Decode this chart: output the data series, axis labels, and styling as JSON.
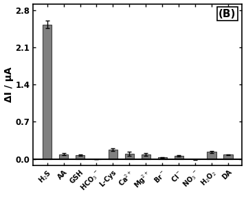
{
  "categories": [
    "H$_2$S",
    "AA",
    "GSH",
    "HCO$_3$$^-$",
    "L-Cys",
    "Ca$^{2+}$",
    "Mg$^{2+}$",
    "Br$^-$",
    "Cl$^-$",
    "NO$_3$$^-$",
    "H$_2$O$_2$",
    "DA"
  ],
  "values": [
    2.53,
    0.09,
    0.07,
    -0.005,
    0.17,
    0.1,
    0.085,
    0.03,
    0.06,
    -0.012,
    0.13,
    0.08
  ],
  "errors": [
    0.07,
    0.022,
    0.01,
    0.004,
    0.025,
    0.04,
    0.02,
    0.008,
    0.01,
    0.005,
    0.015,
    0.01
  ],
  "bar_color": "#808080",
  "bar_edgecolor": "#404040",
  "title_label": "(B)",
  "ylabel": "ΔI / μA",
  "ylim": [
    -0.12,
    2.92
  ],
  "yticks": [
    0.0,
    0.7,
    1.4,
    2.1,
    2.8
  ],
  "background_color": "#ffffff"
}
